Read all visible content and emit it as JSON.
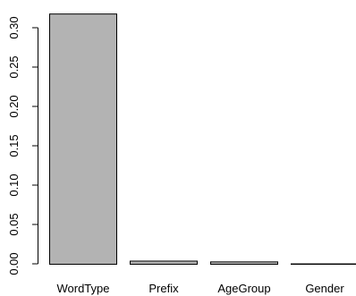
{
  "chart_data": {
    "type": "bar",
    "categories": [
      "WordType",
      "Prefix",
      "AgeGroup",
      "Gender"
    ],
    "values": [
      0.318,
      0.004,
      0.003,
      0.0005
    ],
    "ylim": [
      0,
      0.3
    ],
    "yticks": [
      0.0,
      0.05,
      0.1,
      0.15,
      0.2,
      0.25,
      0.3
    ],
    "ytick_labels": [
      "0.00",
      "0.05",
      "0.10",
      "0.15",
      "0.20",
      "0.25",
      "0.30"
    ],
    "bar_color": "#b3b3b3",
    "grid": false,
    "legend": false
  }
}
